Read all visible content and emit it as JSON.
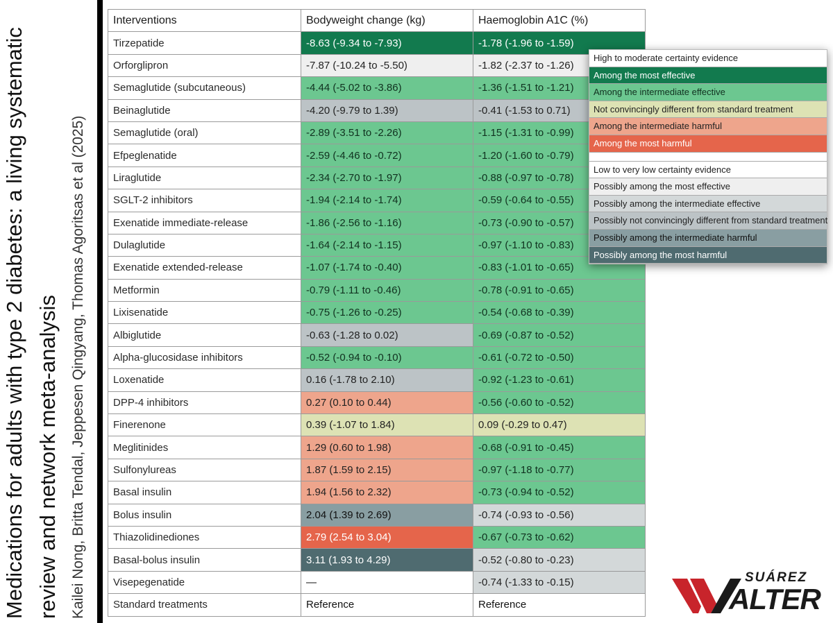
{
  "side": {
    "line1": "Medications for adults with type 2 diabetes: a living systematic",
    "line2": "review and network meta-analysis",
    "authors": "Kailei Nong, Britta Tendal, Jeppesen Qingyang, Thomas Agoritsas et al (2025)"
  },
  "table": {
    "headers": [
      "Interventions",
      "Bodyweight change (kg)",
      "Haemoglobin A1C (%)"
    ],
    "rows": [
      {
        "name": "Tirzepatide",
        "bw": "-8.63 (-9.34 to -7.93)",
        "bwc": "g-most",
        "a1c": "-1.78 (-1.96 to -1.59)",
        "a1cc": "g-most"
      },
      {
        "name": "Orforglipron",
        "bw": "-7.87 (-10.24 to -5.50)",
        "bwc": "l-most",
        "a1c": "-1.82 (-2.37 to -1.26)",
        "a1cc": "l-most"
      },
      {
        "name": "Semaglutide (subcutaneous)",
        "bw": "-4.44 (-5.02 to -3.86)",
        "bwc": "g-int",
        "a1c": "-1.36 (-1.51 to -1.21)",
        "a1cc": "g-int"
      },
      {
        "name": "Beinaglutide",
        "bw": "-4.20 (-9.79 to 1.39)",
        "bwc": "l-notd",
        "a1c": "-0.41 (-1.53 to 0.71)",
        "a1cc": "l-notd"
      },
      {
        "name": "Semaglutide (oral)",
        "bw": "-2.89 (-3.51 to -2.26)",
        "bwc": "g-int",
        "a1c": "-1.15 (-1.31 to -0.99)",
        "a1cc": "g-int"
      },
      {
        "name": "Efpeglenatide",
        "bw": "-2.59 (-4.46 to -0.72)",
        "bwc": "g-int",
        "a1c": "-1.20 (-1.60 to -0.79)",
        "a1cc": "g-int"
      },
      {
        "name": "Liraglutide",
        "bw": "-2.34 (-2.70 to -1.97)",
        "bwc": "g-int",
        "a1c": "-0.88 (-0.97 to -0.78)",
        "a1cc": "g-int"
      },
      {
        "name": "SGLT-2 inhibitors",
        "bw": "-1.94 (-2.14 to -1.74)",
        "bwc": "g-int",
        "a1c": "-0.59 (-0.64 to -0.55)",
        "a1cc": "g-int"
      },
      {
        "name": "Exenatide immediate-release",
        "bw": "-1.86 (-2.56 to -1.16)",
        "bwc": "g-int",
        "a1c": "-0.73 (-0.90 to -0.57)",
        "a1cc": "g-int"
      },
      {
        "name": "Dulaglutide",
        "bw": "-1.64 (-2.14 to -1.15)",
        "bwc": "g-int",
        "a1c": "-0.97 (-1.10 to -0.83)",
        "a1cc": "g-int"
      },
      {
        "name": "Exenatide extended-release",
        "bw": "-1.07 (-1.74 to -0.40)",
        "bwc": "g-int",
        "a1c": "-0.83 (-1.01 to -0.65)",
        "a1cc": "g-int"
      },
      {
        "name": "Metformin",
        "bw": "-0.79 (-1.11 to -0.46)",
        "bwc": "g-int",
        "a1c": "-0.78 (-0.91 to -0.65)",
        "a1cc": "g-int"
      },
      {
        "name": "Lixisenatide",
        "bw": "-0.75 (-1.26 to -0.25)",
        "bwc": "g-int",
        "a1c": "-0.54 (-0.68 to -0.39)",
        "a1cc": "g-int"
      },
      {
        "name": "Albiglutide",
        "bw": "-0.63 (-1.28 to 0.02)",
        "bwc": "l-notd",
        "a1c": "-0.69 (-0.87 to -0.52)",
        "a1cc": "g-int"
      },
      {
        "name": "Alpha-glucosidase inhibitors",
        "bw": "-0.52 (-0.94 to -0.10)",
        "bwc": "g-int",
        "a1c": "-0.61 (-0.72 to -0.50)",
        "a1cc": "g-int"
      },
      {
        "name": "Loxenatide",
        "bw": "0.16 (-1.78 to 2.10)",
        "bwc": "l-notd",
        "a1c": "-0.92 (-1.23 to -0.61)",
        "a1cc": "g-int"
      },
      {
        "name": "DPP-4 inhibitors",
        "bw": "0.27 (0.10 to 0.44)",
        "bwc": "g-harm",
        "a1c": "-0.56 (-0.60 to -0.52)",
        "a1cc": "g-int"
      },
      {
        "name": "Finerenone",
        "bw": "0.39 (-1.07 to 1.84)",
        "bwc": "g-notd",
        "a1c": "0.09 (-0.29 to 0.47)",
        "a1cc": "g-notd"
      },
      {
        "name": "Meglitinides",
        "bw": "1.29 (0.60 to 1.98)",
        "bwc": "g-harm",
        "a1c": "-0.68 (-0.91 to -0.45)",
        "a1cc": "g-int"
      },
      {
        "name": "Sulfonylureas",
        "bw": "1.87 (1.59 to 2.15)",
        "bwc": "g-harm",
        "a1c": "-0.97 (-1.18 to -0.77)",
        "a1cc": "g-int"
      },
      {
        "name": "Basal insulin",
        "bw": "1.94 (1.56 to 2.32)",
        "bwc": "g-harm",
        "a1c": "-0.73 (-0.94 to -0.52)",
        "a1cc": "g-int"
      },
      {
        "name": "Bolus insulin",
        "bw": "2.04 (1.39 to 2.69)",
        "bwc": "l-harm",
        "a1c": "-0.74 (-0.93 to -0.56)",
        "a1cc": "l-int"
      },
      {
        "name": "Thiazolidinediones",
        "bw": "2.79 (2.54 to 3.04)",
        "bwc": "g-mharm",
        "a1c": "-0.67 (-0.73 to -0.62)",
        "a1cc": "g-int"
      },
      {
        "name": "Basal-bolus insulin",
        "bw": "3.11 (1.93 to 4.29)",
        "bwc": "l-mharm",
        "a1c": "-0.52 (-0.80 to -0.23)",
        "a1cc": "l-int"
      },
      {
        "name": "Visepegenatide",
        "bw": "—",
        "bwc": "plain",
        "a1c": "-0.74 (-1.33 to -0.15)",
        "a1cc": "l-int"
      },
      {
        "name": "Standard treatments",
        "bw": "Reference",
        "bwc": "plain",
        "a1c": "Reference",
        "a1cc": "plain"
      }
    ]
  },
  "legend": {
    "high_header": "High to moderate certainty evidence",
    "high": [
      {
        "label": "Among the most effective",
        "cls": "g-most"
      },
      {
        "label": "Among the intermediate effective",
        "cls": "g-int"
      },
      {
        "label": "Not convincingly different from standard treatment",
        "cls": "g-notd"
      },
      {
        "label": "Among the intermediate harmful",
        "cls": "g-harm"
      },
      {
        "label": "Among the most harmful",
        "cls": "g-mharm"
      }
    ],
    "low_header": "Low to very low certainty evidence",
    "low": [
      {
        "label": "Possibly among the most effective",
        "cls": "l-most"
      },
      {
        "label": "Possibly among the intermediate effective",
        "cls": "l-int"
      },
      {
        "label": "Possibly not convincingly different from standard treatment",
        "cls": "l-notd"
      },
      {
        "label": "Possibly among the intermediate harmful",
        "cls": "l-harm"
      },
      {
        "label": "Possibly among the most harmful",
        "cls": "l-mharm"
      }
    ]
  },
  "colors": {
    "g-most": "#127a4e",
    "g-int": "#6cc790",
    "g-notd": "#dde2b4",
    "g-harm": "#eea58c",
    "g-mharm": "#e5654b",
    "l-most": "#efefef",
    "l-int": "#d3d8d9",
    "l-notd": "#bcc3c6",
    "l-harm": "#899ea2",
    "l-mharm": "#4f6b70",
    "logo_red": "#c8242b"
  },
  "logo": {
    "top": "SUÁREZ",
    "bottom": "ALTER"
  }
}
